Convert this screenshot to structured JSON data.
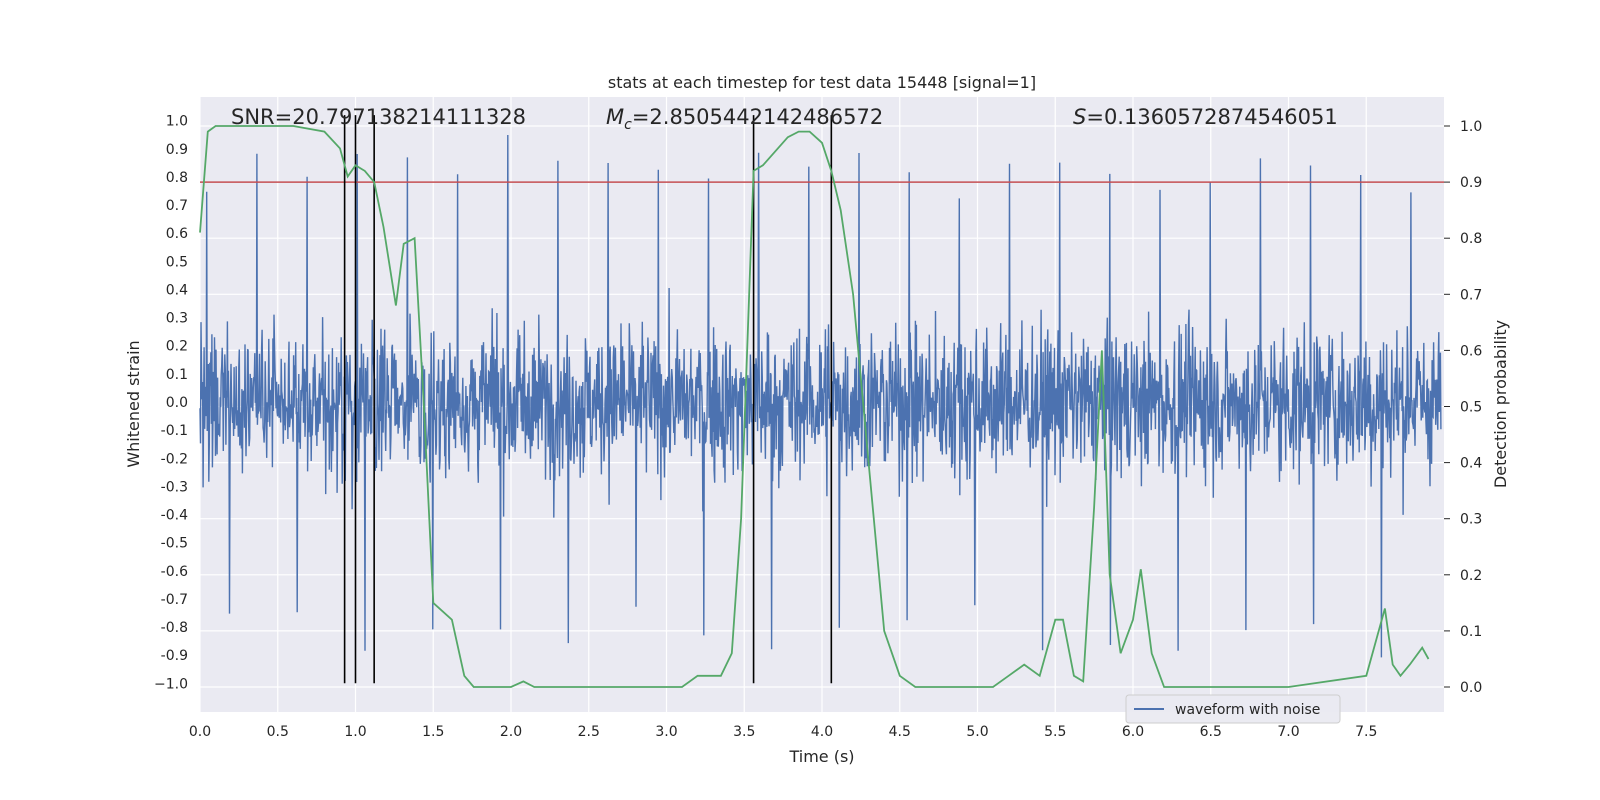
{
  "chart_data": {
    "type": "line",
    "title": "stats at each timestep for test data 15448 [signal=1]",
    "xlabel": "Time (s)",
    "ylabel": "Whitened strain",
    "ylabel_right": "Detection probability",
    "xlim": [
      0.0,
      8.0
    ],
    "ylim": [
      -1.1,
      1.1
    ],
    "ylim_right": [
      -0.05,
      1.05
    ],
    "x_ticks": [
      "0.0",
      "0.5",
      "1.0",
      "1.5",
      "2.0",
      "2.5",
      "3.0",
      "3.5",
      "4.0",
      "4.5",
      "5.0",
      "5.5",
      "6.0",
      "6.5",
      "7.0",
      "7.5"
    ],
    "y_ticks": [
      "1.0",
      "0.9",
      "0.8",
      "0.7",
      "0.6",
      "0.5",
      "0.4",
      "0.3",
      "0.2",
      "0.1",
      "0.0",
      "-0.1",
      "-0.2",
      "-0.3",
      "-0.4",
      "-0.5",
      "-0.6",
      "-0.7",
      "-0.8",
      "-0.9",
      "−1.0"
    ],
    "y_ticks_right": [
      "1.0",
      "0.9",
      "0.8",
      "0.7",
      "0.6",
      "0.5",
      "0.4",
      "0.3",
      "0.2",
      "0.1",
      "0.0"
    ],
    "annotations": {
      "snr": "SNR=20.797138214111328",
      "mc_prefix": "M",
      "mc_sub": "c",
      "mc_value": "=2.8505442142486572",
      "s_prefix": "S",
      "s_value": "=0.1360572874546051"
    },
    "legend": {
      "label": "waveform with noise",
      "placement": "lower-right"
    },
    "waveform": {
      "name": "waveform with noise",
      "color": "#4c72b0",
      "typical_range": [
        -0.45,
        0.45
      ],
      "max_peaks": [
        0.85,
        0.96,
        0.88,
        0.93,
        0.87
      ],
      "min_peaks": [
        -0.87,
        -0.85,
        -0.97,
        -0.93,
        -0.93
      ]
    },
    "threshold": {
      "value": 0.9,
      "axis": "right",
      "color": "#c44e52"
    },
    "vertical_lines": {
      "x": [
        0.93,
        1.0,
        1.12,
        3.56,
        4.06
      ],
      "color": "#000000"
    },
    "detection_probability": {
      "name": "detection probability",
      "color": "#55a868",
      "x": [
        0.0,
        0.05,
        0.1,
        0.2,
        0.4,
        0.6,
        0.8,
        0.9,
        0.95,
        1.0,
        1.06,
        1.12,
        1.18,
        1.26,
        1.31,
        1.38,
        1.44,
        1.5,
        1.62,
        1.7,
        1.76,
        1.9,
        2.0,
        2.08,
        2.15,
        2.25,
        2.5,
        2.7,
        2.9,
        3.1,
        3.2,
        3.35,
        3.42,
        3.48,
        3.56,
        3.62,
        3.78,
        3.85,
        3.92,
        4.0,
        4.06,
        4.12,
        4.2,
        4.3,
        4.4,
        4.5,
        4.6,
        4.7,
        4.8,
        5.0,
        5.1,
        5.2,
        5.3,
        5.4,
        5.5,
        5.55,
        5.62,
        5.68,
        5.75,
        5.8,
        5.85,
        5.92,
        6.0,
        6.05,
        6.12,
        6.2,
        6.5,
        7.0,
        7.5,
        7.62,
        7.67,
        7.72,
        7.78,
        7.86,
        7.9
      ],
      "y": [
        0.81,
        0.99,
        1.0,
        1.0,
        1.0,
        1.0,
        0.99,
        0.96,
        0.91,
        0.93,
        0.92,
        0.9,
        0.82,
        0.68,
        0.79,
        0.8,
        0.5,
        0.15,
        0.12,
        0.02,
        0.0,
        0.0,
        0.0,
        0.01,
        0.0,
        0.0,
        0.0,
        0.0,
        0.0,
        0.0,
        0.02,
        0.02,
        0.06,
        0.3,
        0.92,
        0.93,
        0.98,
        0.99,
        0.99,
        0.97,
        0.92,
        0.85,
        0.7,
        0.4,
        0.1,
        0.02,
        0.0,
        0.0,
        0.0,
        0.0,
        0.0,
        0.02,
        0.04,
        0.02,
        0.12,
        0.12,
        0.02,
        0.01,
        0.32,
        0.6,
        0.2,
        0.06,
        0.12,
        0.21,
        0.06,
        0.0,
        0.0,
        0.0,
        0.02,
        0.14,
        0.04,
        0.02,
        0.04,
        0.07,
        0.05
      ]
    }
  }
}
